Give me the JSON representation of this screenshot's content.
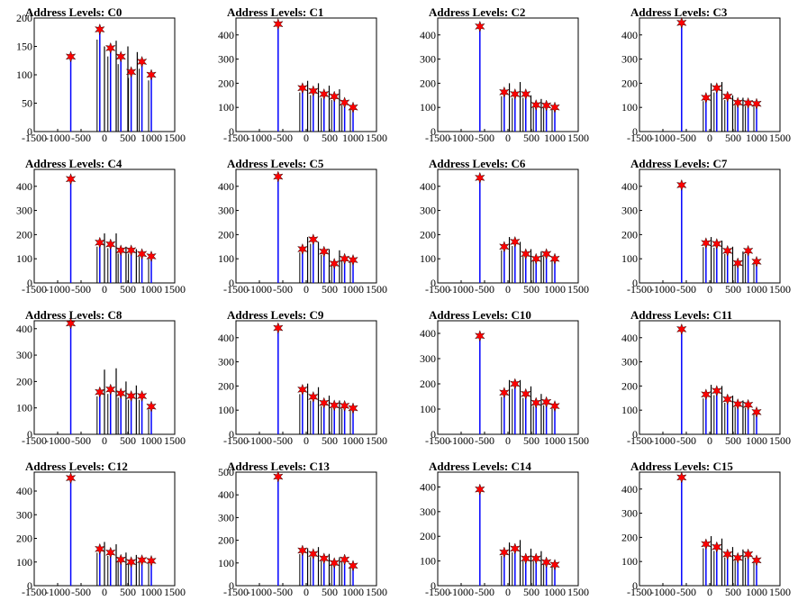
{
  "chart_data": [
    {
      "title": "Address Levels: C0",
      "type": "bar",
      "xlim": [
        -1500,
        1500
      ],
      "ylim": [
        0,
        200
      ],
      "yticks": [
        0,
        50,
        100,
        150,
        200
      ],
      "xticks": [
        -1500,
        -1000,
        -500,
        0,
        500,
        1000,
        1500
      ],
      "peaks_x": [
        -720,
        -100,
        130,
        350,
        570,
        800,
        1000
      ],
      "peaks_y": [
        132,
        180,
        147,
        132,
        105,
        123,
        100
      ],
      "extra_lines": [
        {
          "x": 0,
          "y": 150
        },
        {
          "x": 250,
          "y": 160
        },
        {
          "x": 500,
          "y": 150
        },
        {
          "x": 700,
          "y": 140
        }
      ]
    },
    {
      "title": "Address Levels: C1",
      "type": "bar",
      "xlim": [
        -1500,
        1500
      ],
      "ylim": [
        0,
        470
      ],
      "yticks": [
        0,
        100,
        200,
        300,
        400
      ],
      "xticks": [
        -1500,
        -1000,
        -500,
        0,
        500,
        1000,
        1500
      ],
      "peaks_x": [
        -600,
        -80,
        150,
        380,
        600,
        820,
        1000
      ],
      "peaks_y": [
        445,
        180,
        168,
        155,
        145,
        120,
        100
      ],
      "extra_lines": [
        {
          "x": 30,
          "y": 210
        },
        {
          "x": 260,
          "y": 200
        },
        {
          "x": 490,
          "y": 190
        },
        {
          "x": 710,
          "y": 175
        }
      ]
    },
    {
      "title": "Address Levels: C2",
      "type": "bar",
      "xlim": [
        -1500,
        1500
      ],
      "ylim": [
        0,
        470
      ],
      "yticks": [
        0,
        100,
        200,
        300,
        400
      ],
      "xticks": [
        -1500,
        -1000,
        -500,
        0,
        500,
        1000,
        1500
      ],
      "peaks_x": [
        -600,
        -80,
        150,
        380,
        600,
        820,
        1000
      ],
      "peaks_y": [
        435,
        163,
        155,
        155,
        110,
        108,
        100
      ],
      "extra_lines": [
        {
          "x": 30,
          "y": 200
        },
        {
          "x": 260,
          "y": 205
        },
        {
          "x": 490,
          "y": 150
        },
        {
          "x": 710,
          "y": 135
        }
      ]
    },
    {
      "title": "Address Levels: C3",
      "type": "bar",
      "xlim": [
        -1500,
        1500
      ],
      "ylim": [
        0,
        470
      ],
      "yticks": [
        0,
        100,
        200,
        300,
        400
      ],
      "xticks": [
        -1500,
        -1000,
        -500,
        0,
        500,
        1000,
        1500
      ],
      "peaks_x": [
        -600,
        -80,
        150,
        380,
        600,
        820,
        1000
      ],
      "peaks_y": [
        450,
        140,
        180,
        145,
        120,
        118,
        115
      ],
      "extra_lines": [
        {
          "x": 30,
          "y": 200
        },
        {
          "x": 260,
          "y": 205
        },
        {
          "x": 490,
          "y": 150
        },
        {
          "x": 710,
          "y": 140
        }
      ]
    },
    {
      "title": "Address Levels: C4",
      "type": "bar",
      "xlim": [
        -1500,
        1500
      ],
      "ylim": [
        0,
        470
      ],
      "yticks": [
        0,
        100,
        200,
        300,
        400
      ],
      "xticks": [
        -1500,
        -1000,
        -500,
        0,
        500,
        1000,
        1500
      ],
      "peaks_x": [
        -720,
        -100,
        130,
        350,
        570,
        800,
        1000
      ],
      "peaks_y": [
        430,
        167,
        160,
        135,
        135,
        120,
        110
      ],
      "extra_lines": [
        {
          "x": 0,
          "y": 205
        },
        {
          "x": 250,
          "y": 205
        },
        {
          "x": 460,
          "y": 150
        },
        {
          "x": 680,
          "y": 140
        }
      ]
    },
    {
      "title": "Address Levels: C5",
      "type": "bar",
      "xlim": [
        -1500,
        1500
      ],
      "ylim": [
        0,
        470
      ],
      "yticks": [
        0,
        100,
        200,
        300,
        400
      ],
      "xticks": [
        -1500,
        -1000,
        -500,
        0,
        500,
        1000,
        1500
      ],
      "peaks_x": [
        -600,
        -80,
        150,
        380,
        600,
        820,
        1000
      ],
      "peaks_y": [
        440,
        140,
        180,
        130,
        80,
        100,
        95
      ],
      "extra_lines": [
        {
          "x": 30,
          "y": 190
        },
        {
          "x": 260,
          "y": 170
        },
        {
          "x": 490,
          "y": 140
        },
        {
          "x": 710,
          "y": 135
        }
      ]
    },
    {
      "title": "Address Levels: C6",
      "type": "bar",
      "xlim": [
        -1500,
        1500
      ],
      "ylim": [
        0,
        470
      ],
      "yticks": [
        0,
        100,
        200,
        300,
        400
      ],
      "xticks": [
        -1500,
        -1000,
        -500,
        0,
        500,
        1000,
        1500
      ],
      "peaks_x": [
        -600,
        -80,
        150,
        380,
        600,
        820,
        1000
      ],
      "peaks_y": [
        435,
        150,
        170,
        120,
        100,
        120,
        100
      ],
      "extra_lines": [
        {
          "x": 30,
          "y": 190
        },
        {
          "x": 260,
          "y": 170
        },
        {
          "x": 490,
          "y": 140
        },
        {
          "x": 710,
          "y": 130
        }
      ]
    },
    {
      "title": "Address Levels: C7",
      "type": "bar",
      "xlim": [
        -1500,
        1500
      ],
      "ylim": [
        0,
        470
      ],
      "yticks": [
        0,
        100,
        200,
        300,
        400
      ],
      "xticks": [
        -1500,
        -1000,
        -500,
        0,
        500,
        1000,
        1500
      ],
      "peaks_x": [
        -600,
        -80,
        150,
        380,
        600,
        820,
        1000
      ],
      "peaks_y": [
        405,
        165,
        162,
        133,
        82,
        133,
        88
      ],
      "extra_lines": [
        {
          "x": 30,
          "y": 190
        },
        {
          "x": 260,
          "y": 175
        },
        {
          "x": 490,
          "y": 150
        },
        {
          "x": 710,
          "y": 130
        }
      ]
    },
    {
      "title": "Address Levels: C8",
      "type": "bar",
      "xlim": [
        -1500,
        1500
      ],
      "ylim": [
        0,
        430
      ],
      "yticks": [
        0,
        100,
        200,
        300,
        400
      ],
      "xticks": [
        -1500,
        -1000,
        -500,
        0,
        500,
        1000,
        1500
      ],
      "peaks_x": [
        -720,
        -100,
        130,
        350,
        570,
        800,
        1000
      ],
      "peaks_y": [
        420,
        160,
        170,
        155,
        145,
        145,
        105
      ],
      "extra_lines": [
        {
          "x": 0,
          "y": 245
        },
        {
          "x": 250,
          "y": 250
        },
        {
          "x": 460,
          "y": 200
        },
        {
          "x": 680,
          "y": 185
        }
      ]
    },
    {
      "title": "Address Levels: C9",
      "type": "bar",
      "xlim": [
        -1500,
        1500
      ],
      "ylim": [
        0,
        470
      ],
      "yticks": [
        0,
        100,
        200,
        300,
        400
      ],
      "xticks": [
        -1500,
        -1000,
        -500,
        0,
        500,
        1000,
        1500
      ],
      "peaks_x": [
        -600,
        -80,
        150,
        380,
        600,
        820,
        1000
      ],
      "peaks_y": [
        440,
        185,
        155,
        130,
        120,
        118,
        108
      ],
      "extra_lines": [
        {
          "x": 30,
          "y": 210
        },
        {
          "x": 260,
          "y": 195
        },
        {
          "x": 490,
          "y": 160
        },
        {
          "x": 710,
          "y": 140
        }
      ]
    },
    {
      "title": "Address Levels: C10",
      "type": "bar",
      "xlim": [
        -1500,
        1500
      ],
      "ylim": [
        0,
        450
      ],
      "yticks": [
        0,
        100,
        200,
        300,
        400
      ],
      "xticks": [
        -1500,
        -1000,
        -500,
        0,
        500,
        1000,
        1500
      ],
      "peaks_x": [
        -600,
        -80,
        150,
        380,
        600,
        820,
        1000
      ],
      "peaks_y": [
        390,
        165,
        200,
        160,
        125,
        128,
        112
      ],
      "extra_lines": [
        {
          "x": 30,
          "y": 215
        },
        {
          "x": 260,
          "y": 215
        },
        {
          "x": 490,
          "y": 190
        },
        {
          "x": 710,
          "y": 160
        }
      ]
    },
    {
      "title": "Address Levels: C11",
      "type": "bar",
      "xlim": [
        -1500,
        1500
      ],
      "ylim": [
        0,
        470
      ],
      "yticks": [
        0,
        100,
        200,
        300,
        400
      ],
      "xticks": [
        -1500,
        -1000,
        -500,
        0,
        500,
        1000,
        1500
      ],
      "peaks_x": [
        -600,
        -80,
        150,
        380,
        600,
        820,
        1000
      ],
      "peaks_y": [
        435,
        165,
        180,
        145,
        125,
        122,
        92
      ],
      "extra_lines": [
        {
          "x": 30,
          "y": 205
        },
        {
          "x": 260,
          "y": 200
        },
        {
          "x": 490,
          "y": 160
        },
        {
          "x": 710,
          "y": 140
        }
      ]
    },
    {
      "title": "Address Levels: C12",
      "type": "bar",
      "xlim": [
        -1500,
        1500
      ],
      "ylim": [
        0,
        480
      ],
      "yticks": [
        0,
        100,
        200,
        300,
        400
      ],
      "xticks": [
        -1500,
        -1000,
        -500,
        0,
        500,
        1000,
        1500
      ],
      "peaks_x": [
        -720,
        -100,
        130,
        350,
        570,
        800,
        1000
      ],
      "peaks_y": [
        455,
        155,
        140,
        110,
        100,
        108,
        105
      ],
      "extra_lines": [
        {
          "x": 0,
          "y": 185
        },
        {
          "x": 250,
          "y": 175
        },
        {
          "x": 460,
          "y": 140
        },
        {
          "x": 680,
          "y": 130
        }
      ]
    },
    {
      "title": "Address Levels: C13",
      "type": "bar",
      "xlim": [
        -1500,
        1500
      ],
      "ylim": [
        0,
        500
      ],
      "yticks": [
        0,
        100,
        200,
        300,
        400,
        500
      ],
      "xticks": [
        -1500,
        -1000,
        -500,
        0,
        500,
        1000,
        1500
      ],
      "peaks_x": [
        -600,
        -80,
        150,
        380,
        600,
        820,
        1000
      ],
      "peaks_y": [
        480,
        155,
        140,
        120,
        100,
        115,
        88
      ],
      "extra_lines": [
        {
          "x": 30,
          "y": 165
        },
        {
          "x": 260,
          "y": 170
        },
        {
          "x": 490,
          "y": 140
        },
        {
          "x": 710,
          "y": 125
        }
      ]
    },
    {
      "title": "Address Levels: C14",
      "type": "bar",
      "xlim": [
        -1500,
        1500
      ],
      "ylim": [
        0,
        460
      ],
      "yticks": [
        0,
        100,
        200,
        300,
        400
      ],
      "xticks": [
        -1500,
        -1000,
        -500,
        0,
        500,
        1000,
        1500
      ],
      "peaks_x": [
        -600,
        -80,
        150,
        380,
        600,
        820,
        1000
      ],
      "peaks_y": [
        390,
        135,
        150,
        110,
        110,
        95,
        85
      ],
      "extra_lines": [
        {
          "x": 30,
          "y": 175
        },
        {
          "x": 260,
          "y": 185
        },
        {
          "x": 490,
          "y": 150
        },
        {
          "x": 710,
          "y": 140
        }
      ]
    },
    {
      "title": "Address Levels: C15",
      "type": "bar",
      "xlim": [
        -1500,
        1500
      ],
      "ylim": [
        0,
        470
      ],
      "yticks": [
        0,
        100,
        200,
        300,
        400
      ],
      "xticks": [
        -1500,
        -1000,
        -500,
        0,
        500,
        1000,
        1500
      ],
      "peaks_x": [
        -600,
        -80,
        150,
        380,
        600,
        820,
        1000
      ],
      "peaks_y": [
        448,
        172,
        160,
        130,
        115,
        130,
        105
      ],
      "extra_lines": [
        {
          "x": 30,
          "y": 205
        },
        {
          "x": 260,
          "y": 195
        },
        {
          "x": 490,
          "y": 160
        },
        {
          "x": 710,
          "y": 150
        }
      ]
    }
  ],
  "colors": {
    "primary_line": "#0000ff",
    "secondary_line": "#000000",
    "marker": "#ff0000",
    "axis": "#000000"
  }
}
